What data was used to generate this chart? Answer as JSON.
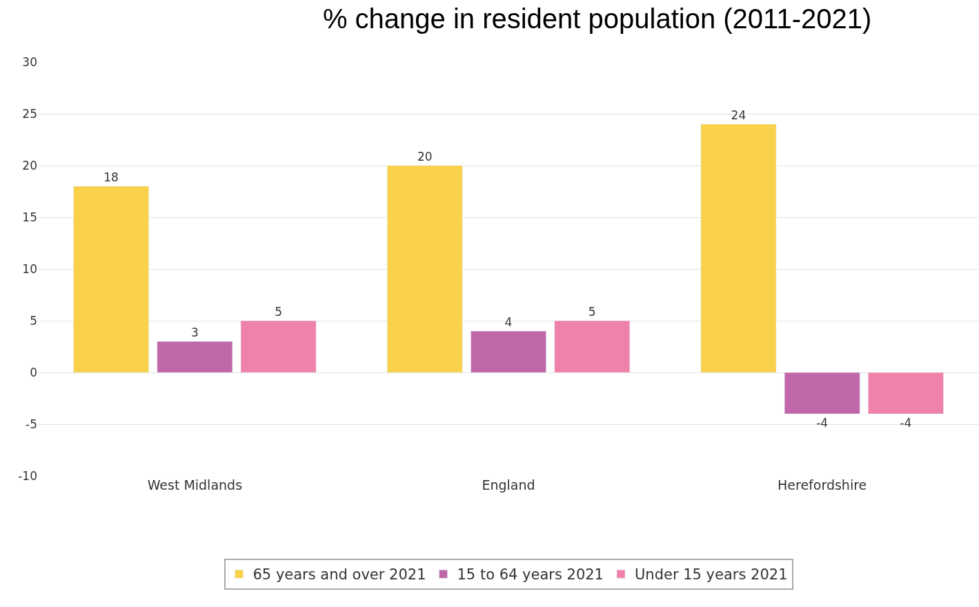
{
  "chart_data": {
    "type": "bar",
    "title": "% change in resident population (2011-2021)",
    "categories": [
      "West Midlands",
      "England",
      "Herefordshire"
    ],
    "series": [
      {
        "name": "65 years and over 2021",
        "color": "#f9d14b",
        "values": [
          18,
          20,
          24
        ]
      },
      {
        "name": "15 to 64 years 2021",
        "color": "#c067a9",
        "values": [
          3,
          4,
          -4
        ]
      },
      {
        "name": "Under 15 years 2021",
        "color": "#ef82ab",
        "values": [
          5,
          5,
          -4
        ]
      }
    ],
    "ylim": [
      -10,
      30
    ],
    "yticks": [
      -10,
      -5,
      0,
      5,
      10,
      15,
      20,
      25,
      30
    ],
    "grid": "y",
    "legend": "bottom",
    "data_labels": true
  }
}
